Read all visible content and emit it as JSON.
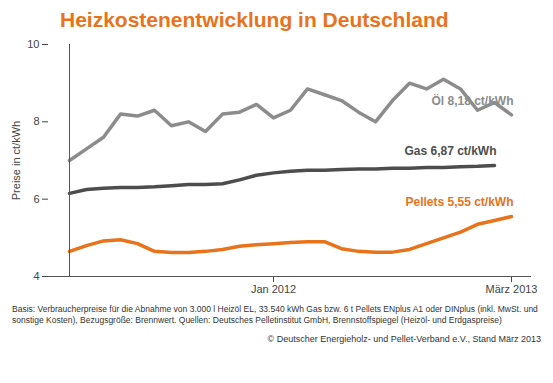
{
  "chart_data": {
    "type": "line",
    "title": "Heizkostenentwicklung in Deutschland",
    "y_label": "Preise in ct/kWh",
    "categories": [
      null,
      null,
      null,
      null,
      null,
      null,
      null,
      null,
      null,
      null,
      null,
      null,
      "Jan 2012",
      null,
      null,
      null,
      null,
      null,
      null,
      null,
      null,
      null,
      null,
      null,
      null,
      null,
      "März 2013"
    ],
    "series": [
      {
        "name": "Öl",
        "color": "#8c8c8c",
        "values": [
          7.0,
          7.3,
          7.6,
          8.2,
          8.15,
          8.3,
          7.9,
          8.0,
          7.75,
          8.2,
          8.25,
          8.45,
          8.1,
          8.3,
          8.85,
          8.7,
          8.55,
          8.25,
          8.0,
          8.55,
          9.0,
          8.85,
          9.1,
          8.85,
          8.3,
          8.5,
          8.18
        ]
      },
      {
        "name": "Gas",
        "color": "#4d4d4d",
        "values": [
          6.15,
          6.25,
          6.28,
          6.3,
          6.3,
          6.32,
          6.35,
          6.38,
          6.38,
          6.4,
          6.5,
          6.62,
          6.68,
          6.72,
          6.75,
          6.75,
          6.77,
          6.78,
          6.78,
          6.8,
          6.8,
          6.82,
          6.82,
          6.84,
          6.85,
          6.87,
          null
        ]
      },
      {
        "name": "Pellets",
        "color": "#e8731a",
        "values": [
          4.65,
          4.8,
          4.92,
          4.95,
          4.85,
          4.65,
          4.62,
          4.62,
          4.65,
          4.7,
          4.78,
          4.82,
          4.85,
          4.88,
          4.9,
          4.9,
          4.72,
          4.65,
          4.63,
          4.63,
          4.7,
          4.85,
          5.0,
          5.15,
          5.35,
          5.45,
          5.55
        ]
      }
    ],
    "annotations": [
      {
        "series": "Öl",
        "text": "Öl 8,18 ct/kWh"
      },
      {
        "series": "Gas",
        "text": "Gas 6,87 ct/kWh"
      },
      {
        "series": "Pellets",
        "text": "Pellets 5,55 ct/kWh"
      }
    ],
    "ylim": [
      4,
      10
    ],
    "yticks": [
      4,
      6,
      8,
      10
    ],
    "grid": false,
    "caption": "Basis: Verbraucherpreise für die Abnahme von 3.000 l Heizöl EL, 33.540 kWh Gas bzw. 6 t Pellets ENplus A1 oder DINplus (inkl. MwSt. und sonstige Kosten), Bezugsgröße: Brennwert. Quellen: Deutsches Pelletinstitut GmbH, Brennstoffspiegel (Heizöl- und Erdgaspreise)",
    "copyright": "© Deutscher Energieholz- und Pellet-Verband e.V., Stand März 2013"
  }
}
